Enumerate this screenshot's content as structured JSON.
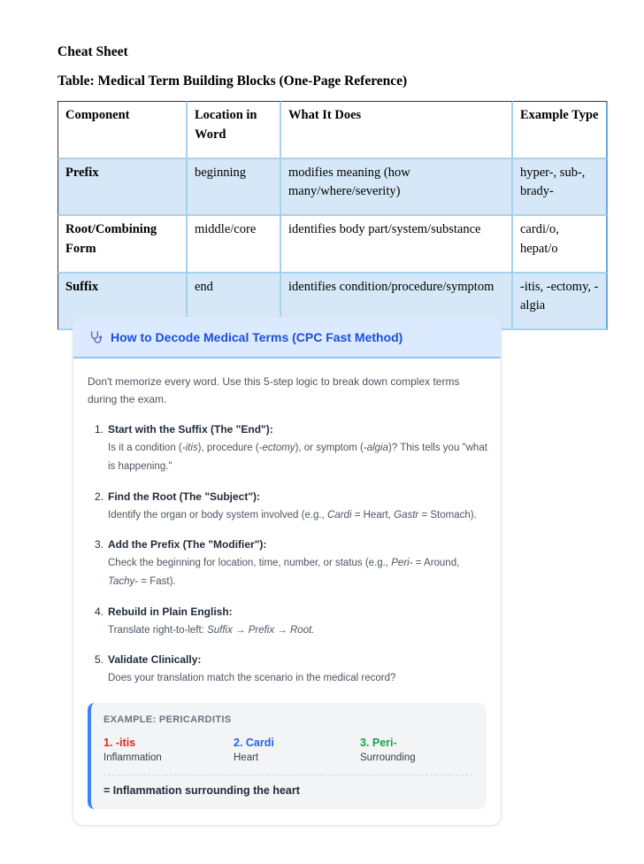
{
  "doc": {
    "heading1": "Cheat Sheet",
    "heading2": "Table: Medical Term Building Blocks (One-Page Reference)"
  },
  "table": {
    "headers": [
      "Component",
      "Location in Word",
      "What It Does",
      "Example Type"
    ],
    "rows": [
      {
        "component": "Prefix",
        "location": "beginning",
        "does": "modifies meaning (how many/where/severity)",
        "example": "hyper-, sub-, brady-"
      },
      {
        "component": "Root/Combining Form",
        "location": "middle/core",
        "does": "identifies body part/system/substance",
        "example": "cardi/o, hepat/o"
      },
      {
        "component": "Suffix",
        "location": "end",
        "does": "identifies condition/procedure/symptom",
        "example": "-itis, -ectomy, -algia"
      }
    ]
  },
  "card": {
    "icon": "stethoscope",
    "title": "How to Decode Medical Terms (CPC Fast Method)",
    "intro": "Don't memorize every word. Use this 5-step logic to break down complex terms during the exam.",
    "steps": [
      {
        "num": "1.",
        "title": "Start with the Suffix (The \"End\"):",
        "desc": [
          {
            "t": "Is it a condition ("
          },
          {
            "t": "-itis",
            "i": true
          },
          {
            "t": "), procedure ("
          },
          {
            "t": "-ectomy",
            "i": true
          },
          {
            "t": "), or symptom ("
          },
          {
            "t": "-algia",
            "i": true
          },
          {
            "t": ")? This tells you \"what is happening.\""
          }
        ]
      },
      {
        "num": "2.",
        "title": "Find the Root (The \"Subject\"):",
        "desc": [
          {
            "t": "Identify the organ or body system involved (e.g., "
          },
          {
            "t": "Cardi",
            "i": true
          },
          {
            "t": " = Heart, "
          },
          {
            "t": "Gastr",
            "i": true
          },
          {
            "t": " = Stomach)."
          }
        ]
      },
      {
        "num": "3.",
        "title": "Add the Prefix (The \"Modifier\"):",
        "desc": [
          {
            "t": "Check the beginning for location, time, number, or status (e.g., "
          },
          {
            "t": "Peri-",
            "i": true
          },
          {
            "t": " = Around, "
          },
          {
            "t": "Tachy-",
            "i": true
          },
          {
            "t": " = Fast)."
          }
        ]
      },
      {
        "num": "4.",
        "title": "Rebuild in Plain English:",
        "desc": [
          {
            "t": "Translate right-to-left: "
          },
          {
            "t": "Suffix → Prefix → Root.",
            "i": true
          }
        ]
      },
      {
        "num": "5.",
        "title": "Validate Clinically:",
        "desc": [
          {
            "t": "Does your translation match the scenario in the medical record?"
          }
        ]
      }
    ],
    "example": {
      "label": "EXAMPLE: PERICARDITIS",
      "parts": [
        {
          "title": "1. -itis",
          "subtitle": "Inflammation",
          "color": "#dc2626"
        },
        {
          "title": "2. Cardi",
          "subtitle": "Heart",
          "color": "#2563eb"
        },
        {
          "title": "3. Peri-",
          "subtitle": "Surrounding",
          "color": "#16a34a"
        }
      ],
      "result": "= Inflammation surrounding the heart"
    },
    "accent_colors": {
      "header_bg": "#dbeafe",
      "header_text": "#1d4ed8",
      "example_border": "#3b82f6"
    }
  }
}
